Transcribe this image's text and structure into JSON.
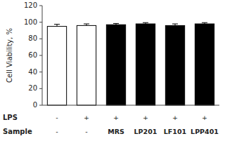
{
  "chart_data": {
    "type": "bar",
    "categories": [
      null,
      null,
      null,
      null,
      null,
      null
    ],
    "values": [
      95,
      96,
      97,
      98,
      96,
      98
    ],
    "errors": [
      2.5,
      2.0,
      1.5,
      1.5,
      2.0,
      1.5
    ],
    "colors": [
      "white",
      "white",
      "black",
      "black",
      "black",
      "black"
    ],
    "ylabel": "Cell Viability, %",
    "ylim": [
      0,
      120
    ],
    "yticks": [
      0,
      20,
      40,
      60,
      80,
      100,
      120
    ],
    "grid": false,
    "tick_labels": "y",
    "row_labels": [
      {
        "label": "LPS",
        "values": [
          "-",
          "+",
          "+",
          "+",
          "+",
          "+"
        ]
      },
      {
        "label": "Sample",
        "values": [
          "-",
          "-",
          "MRS",
          "LP201",
          "LF101",
          "LPP401"
        ]
      }
    ]
  }
}
